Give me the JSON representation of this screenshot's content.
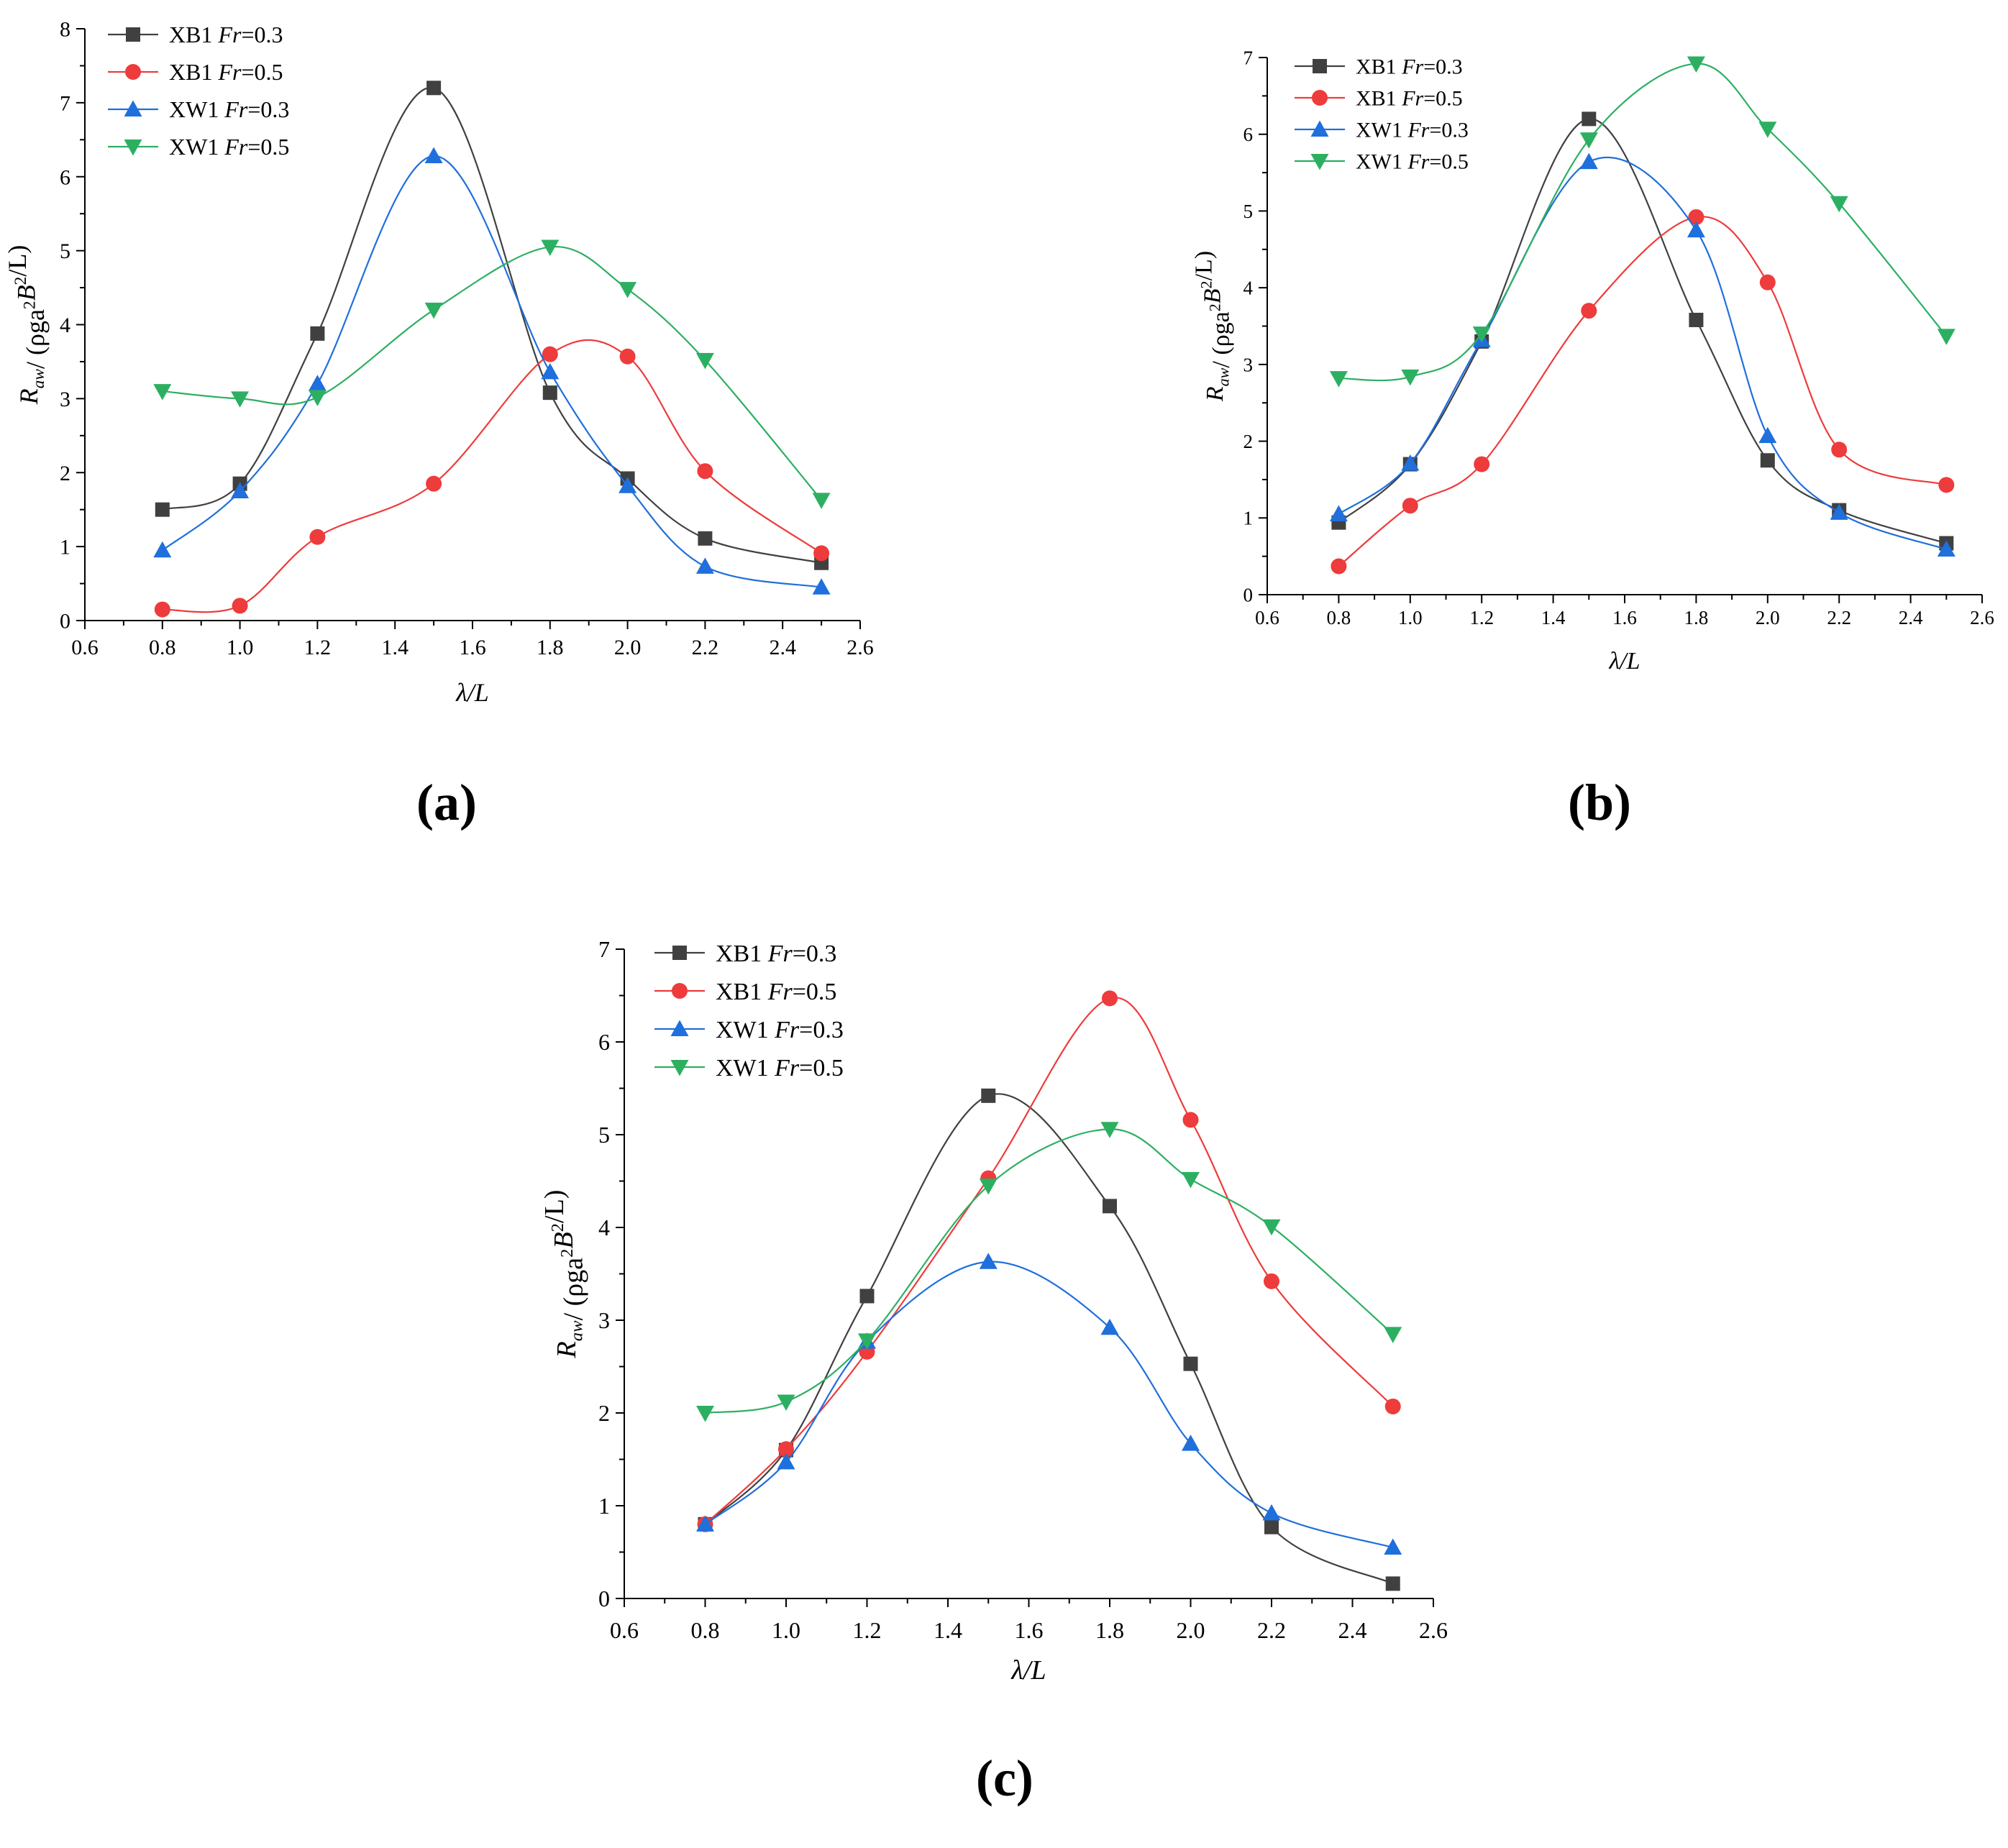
{
  "figure": {
    "panel_labels": [
      "(a)",
      "(b)",
      "(c)"
    ]
  },
  "axis_labels": {
    "xlabel": "λ/L",
    "ylabel_parts": [
      "R",
      "aw",
      "/ (ρga",
      "2",
      "B",
      "2",
      "/L)"
    ]
  },
  "series_style": [
    {
      "name": "XB1 Fr=0.3",
      "prefix": "XB1 ",
      "italic": "Fr",
      "suffix": "=0.3",
      "color": "#404040",
      "marker": "square"
    },
    {
      "name": "XB1 Fr=0.5",
      "prefix": "XB1 ",
      "italic": "Fr",
      "suffix": "=0.5",
      "color": "#ee3b3b",
      "marker": "circle"
    },
    {
      "name": "XW1 Fr=0.3",
      "prefix": "XW1 ",
      "italic": "Fr",
      "suffix": "=0.3",
      "color": "#1f6fdc",
      "marker": "triangle-up"
    },
    {
      "name": "XW1 Fr=0.5",
      "prefix": "XW1 ",
      "italic": "Fr",
      "suffix": "=0.5",
      "color": "#2daf62",
      "marker": "triangle-down"
    }
  ],
  "chart_data": [
    {
      "type": "line",
      "panel": "(a)",
      "title": "",
      "xlabel": "λ/L",
      "ylabel": "Raw/ (ρga²B²/L)",
      "xlim": [
        0.6,
        2.6
      ],
      "ylim": [
        0,
        8
      ],
      "x_ticks": [
        "0.6",
        "0.8",
        "1.0",
        "1.2",
        "1.4",
        "1.6",
        "1.8",
        "2.0",
        "2.2",
        "2.4",
        "2.6"
      ],
      "y_ticks": [
        "0",
        "1",
        "2",
        "3",
        "4",
        "5",
        "6",
        "7",
        "8"
      ],
      "legend": "top-left",
      "x": [
        0.8,
        1.0,
        1.2,
        1.5,
        1.8,
        2.0,
        2.2,
        2.5
      ],
      "series": [
        {
          "name": "XB1 Fr=0.3",
          "values": [
            1.5,
            1.85,
            3.88,
            7.2,
            3.08,
            1.92,
            1.11,
            0.78
          ]
        },
        {
          "name": "XB1 Fr=0.5",
          "values": [
            0.15,
            0.2,
            1.13,
            1.85,
            3.6,
            3.57,
            2.02,
            0.91
          ]
        },
        {
          "name": "XW1 Fr=0.3",
          "values": [
            0.95,
            1.75,
            3.2,
            6.28,
            3.36,
            1.82,
            0.73,
            0.45
          ]
        },
        {
          "name": "XW1 Fr=0.5",
          "values": [
            3.1,
            3.0,
            3.02,
            4.2,
            5.05,
            4.48,
            3.52,
            1.63
          ]
        }
      ]
    },
    {
      "type": "line",
      "panel": "(b)",
      "title": "",
      "xlabel": "λ/L",
      "ylabel": "Raw/ (ρga²B²/L)",
      "xlim": [
        0.6,
        2.6
      ],
      "ylim": [
        0,
        7
      ],
      "x_ticks": [
        "0.6",
        "0.8",
        "1.0",
        "1.2",
        "1.4",
        "1.6",
        "1.8",
        "2.0",
        "2.2",
        "2.4",
        "2.6"
      ],
      "y_ticks": [
        "0",
        "1",
        "2",
        "3",
        "4",
        "5",
        "6",
        "7"
      ],
      "legend": "top-left",
      "x": [
        0.8,
        1.0,
        1.2,
        1.5,
        1.8,
        2.0,
        2.2,
        2.5
      ],
      "series": [
        {
          "name": "XB1 Fr=0.3",
          "values": [
            0.94,
            1.7,
            3.3,
            6.2,
            3.58,
            1.75,
            1.1,
            0.67
          ]
        },
        {
          "name": "XB1 Fr=0.5",
          "values": [
            0.37,
            1.16,
            1.7,
            3.7,
            4.92,
            4.07,
            1.89,
            1.43
          ]
        },
        {
          "name": "XW1 Fr=0.3",
          "values": [
            1.05,
            1.71,
            3.32,
            5.64,
            4.75,
            2.07,
            1.07,
            0.59
          ]
        },
        {
          "name": "XW1 Fr=0.5",
          "values": [
            2.82,
            2.84,
            3.4,
            5.93,
            6.92,
            6.07,
            5.1,
            3.37
          ]
        }
      ]
    },
    {
      "type": "line",
      "panel": "(c)",
      "title": "",
      "xlabel": "λ/L",
      "ylabel": "Raw/ (ρga²B²/L)",
      "xlim": [
        0.6,
        2.6
      ],
      "ylim": [
        0,
        7
      ],
      "x_ticks": [
        "0.6",
        "0.8",
        "1.0",
        "1.2",
        "1.4",
        "1.6",
        "1.8",
        "2.0",
        "2.2",
        "2.4",
        "2.6"
      ],
      "y_ticks": [
        "0",
        "1",
        "2",
        "3",
        "4",
        "5",
        "6",
        "7"
      ],
      "legend": "top-left",
      "x": [
        0.8,
        1.0,
        1.2,
        1.5,
        1.8,
        2.0,
        2.2,
        2.5
      ],
      "series": [
        {
          "name": "XB1 Fr=0.3",
          "values": [
            0.8,
            1.6,
            3.26,
            5.42,
            4.23,
            2.53,
            0.77,
            0.16
          ]
        },
        {
          "name": "XB1 Fr=0.5",
          "values": [
            0.8,
            1.61,
            2.66,
            4.53,
            6.47,
            5.16,
            3.42,
            2.07
          ]
        },
        {
          "name": "XW1 Fr=0.3",
          "values": [
            0.8,
            1.47,
            2.77,
            3.63,
            2.92,
            1.67,
            0.92,
            0.55
          ]
        },
        {
          "name": "XW1 Fr=0.5",
          "values": [
            2.0,
            2.12,
            2.78,
            4.45,
            5.06,
            4.52,
            4.01,
            2.85
          ]
        }
      ]
    }
  ]
}
